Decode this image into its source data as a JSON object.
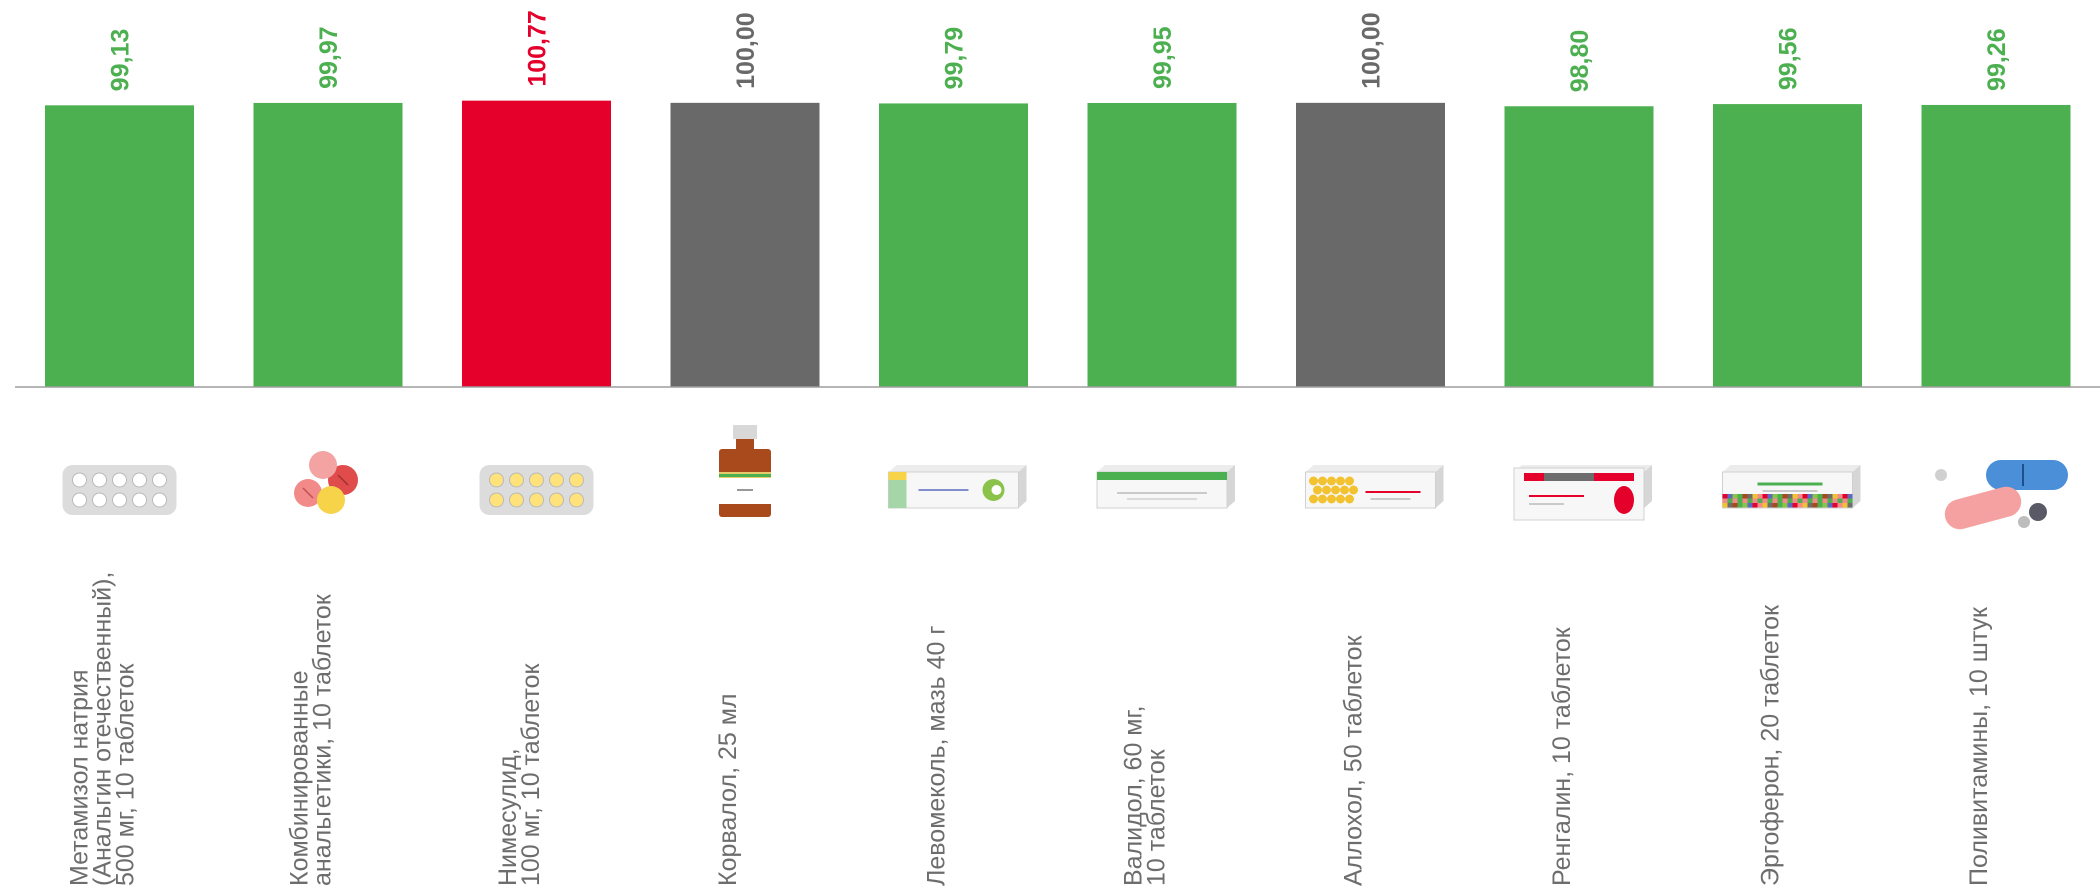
{
  "colors": {
    "above": "#e4002b",
    "equal": "#696969",
    "below": "#4caf50",
    "axis": "#9e9e9e",
    "label": "#6d6d6d"
  },
  "chart_data": {
    "type": "bar",
    "title": "",
    "xlabel": "",
    "ylabel": "",
    "ylim": [
      0,
      101
    ],
    "grid": false,
    "legend": "none",
    "categories": [
      [
        "Метамизол натрия",
        "(Анальгин отечественный),",
        "500 мг, 10 таблеток"
      ],
      [
        "Комбинированные",
        "анальгетики, 10 таблеток"
      ],
      [
        "Нимесулид,",
        "100 мг, 10 таблеток"
      ],
      [
        "Корвалол, 25 мл"
      ],
      [
        "Левомеколь, мазь 40 г"
      ],
      [
        "Валидол, 60 мг,",
        "10 таблеток"
      ],
      [
        "Аллохол, 50 таблеток"
      ],
      [
        "Ренгалин, 10 таблеток"
      ],
      [
        "Эргоферон, 20 таблеток"
      ],
      [
        "Поливитамины, 10 штук"
      ]
    ],
    "values": [
      99.13,
      99.97,
      100.77,
      100.0,
      99.79,
      99.95,
      100.0,
      98.8,
      99.56,
      99.26
    ],
    "value_labels": [
      "99,13",
      "99,97",
      "100,77",
      "100,00",
      "99,79",
      "99,95",
      "100,00",
      "98,80",
      "99,56",
      "99,26"
    ],
    "color_classes": [
      "below",
      "below",
      "above",
      "equal",
      "below",
      "below",
      "equal",
      "below",
      "below",
      "below"
    ],
    "icons": [
      "blister-white-icon",
      "assorted-pills-icon",
      "blister-yellow-icon",
      "bottle-icon",
      "ointment-box-icon",
      "validol-box-icon",
      "allohol-box-icon",
      "rengalin-box-icon",
      "ergoferon-box-icon",
      "vitamin-capsules-icon"
    ]
  }
}
